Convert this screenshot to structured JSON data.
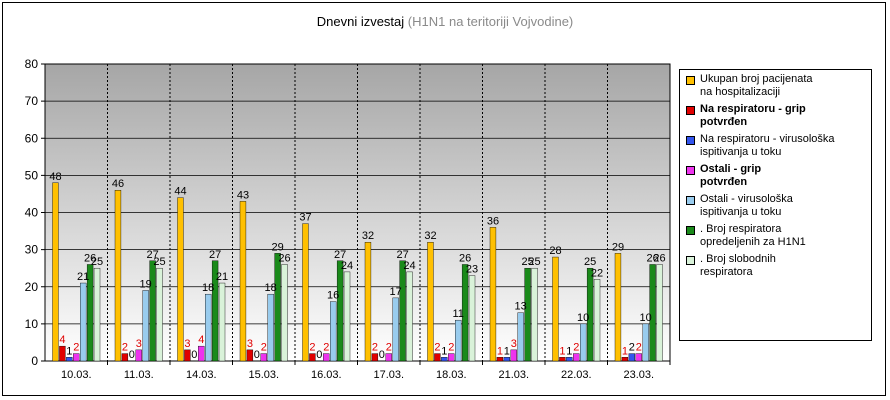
{
  "title": {
    "main": "Dnevni izvestaj",
    "sub": "(H1N1  na teritoriji Vojvodine)"
  },
  "chart_data": {
    "type": "bar",
    "categories": [
      "10.03.",
      "11.03.",
      "14.03.",
      "15.03.",
      "16.03.",
      "17.03.",
      "18.03.",
      "21.03.",
      "22.03.",
      "23.03."
    ],
    "ylim": [
      0,
      80
    ],
    "yticks": [
      "0",
      "10",
      "20",
      "30",
      "40",
      "50",
      "60",
      "70",
      "80"
    ],
    "grid": true,
    "legend_position": "right",
    "series": [
      {
        "name": "Ukupan broj pacijenata\nna hospitalizaciji",
        "color": "#FFC000",
        "label_color": "#000000",
        "bold": false,
        "values": [
          48,
          46,
          44,
          43,
          37,
          32,
          32,
          36,
          28,
          29
        ]
      },
      {
        "name": "Na respiratoru    - grip\npotvrđen",
        "color": "#E00000",
        "label_color": "#E00000",
        "bold": true,
        "values": [
          4,
          2,
          3,
          3,
          2,
          2,
          2,
          1,
          1,
          1
        ]
      },
      {
        "name": "Na respiratoru    - virusološka\nispitivanja u toku",
        "color": "#3355EE",
        "label_color": "#000000",
        "bold": false,
        "values": [
          1,
          0,
          0,
          0,
          0,
          0,
          1,
          1,
          1,
          2
        ]
      },
      {
        "name": "Ostali    - grip\npotvrđen",
        "color": "#EE33EE",
        "label_color": "#E00000",
        "bold": true,
        "values": [
          2,
          3,
          4,
          2,
          2,
          2,
          2,
          3,
          2,
          2
        ]
      },
      {
        "name": "Ostali    - virusološka\nispitivanja u toku",
        "color": "#99CCEE",
        "label_color": "#000000",
        "bold": false,
        "values": [
          21,
          19,
          18,
          18,
          16,
          17,
          11,
          13,
          10,
          10
        ]
      },
      {
        "name": ". Broj respiratora\nopredeljenih za H1N1",
        "color": "#1A8A1A",
        "label_color": "#000000",
        "bold": false,
        "values": [
          26,
          27,
          27,
          29,
          27,
          27,
          26,
          25,
          25,
          26
        ]
      },
      {
        "name": ". Broj slobodnih\nrespiratora",
        "color": "#D9F2D9",
        "label_color": "#000000",
        "bold": false,
        "values": [
          25,
          25,
          21,
          26,
          24,
          24,
          23,
          25,
          22,
          26
        ]
      }
    ]
  }
}
